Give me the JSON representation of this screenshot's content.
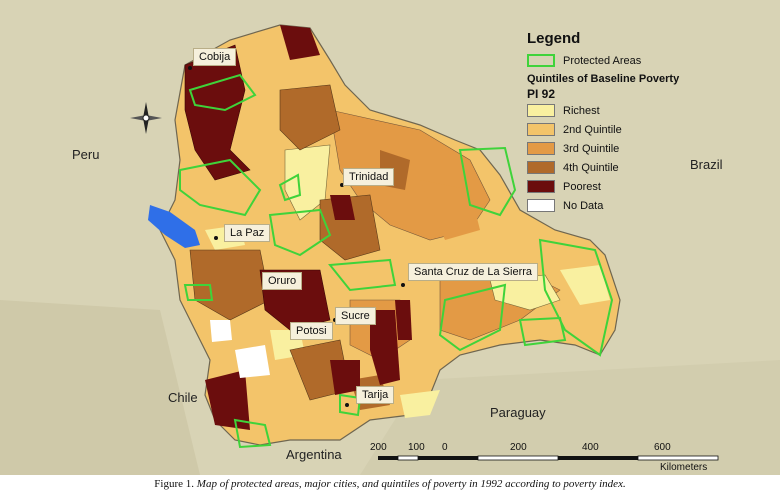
{
  "countries": [
    "Peru",
    "Brazil",
    "Chile",
    "Paraguay",
    "Argentina"
  ],
  "cities": [
    "Cobija",
    "Trinidad",
    "La Paz",
    "Oruro",
    "Santa Cruz de La Sierra",
    "Sucre",
    "Potosi",
    "Tarija"
  ],
  "legend": {
    "title": "Legend",
    "protected_label": "Protected Areas",
    "subtitle": "Quintiles of Baseline Poverty",
    "index": "PI 92",
    "items": [
      {
        "label": "Richest",
        "color": "#f9f0a0"
      },
      {
        "label": "2nd Quintile",
        "color": "#f3c46a"
      },
      {
        "label": "3rd Quintile",
        "color": "#e39a45"
      },
      {
        "label": "4th Quintile",
        "color": "#b06a2a"
      },
      {
        "label": "Poorest",
        "color": "#6b0d0d"
      },
      {
        "label": "No Data",
        "color": "#ffffff"
      }
    ],
    "protected_color": "#3fd33a"
  },
  "scale": {
    "ticks": [
      "200",
      "100",
      "0",
      "200",
      "400",
      "600"
    ],
    "unit": "Kilometers"
  },
  "lake_color": "#2f6fe8",
  "caption": {
    "label": "Figure 1.",
    "text": "Map of protected areas, major cities, and quintiles of poverty in 1992 according to poverty index."
  }
}
